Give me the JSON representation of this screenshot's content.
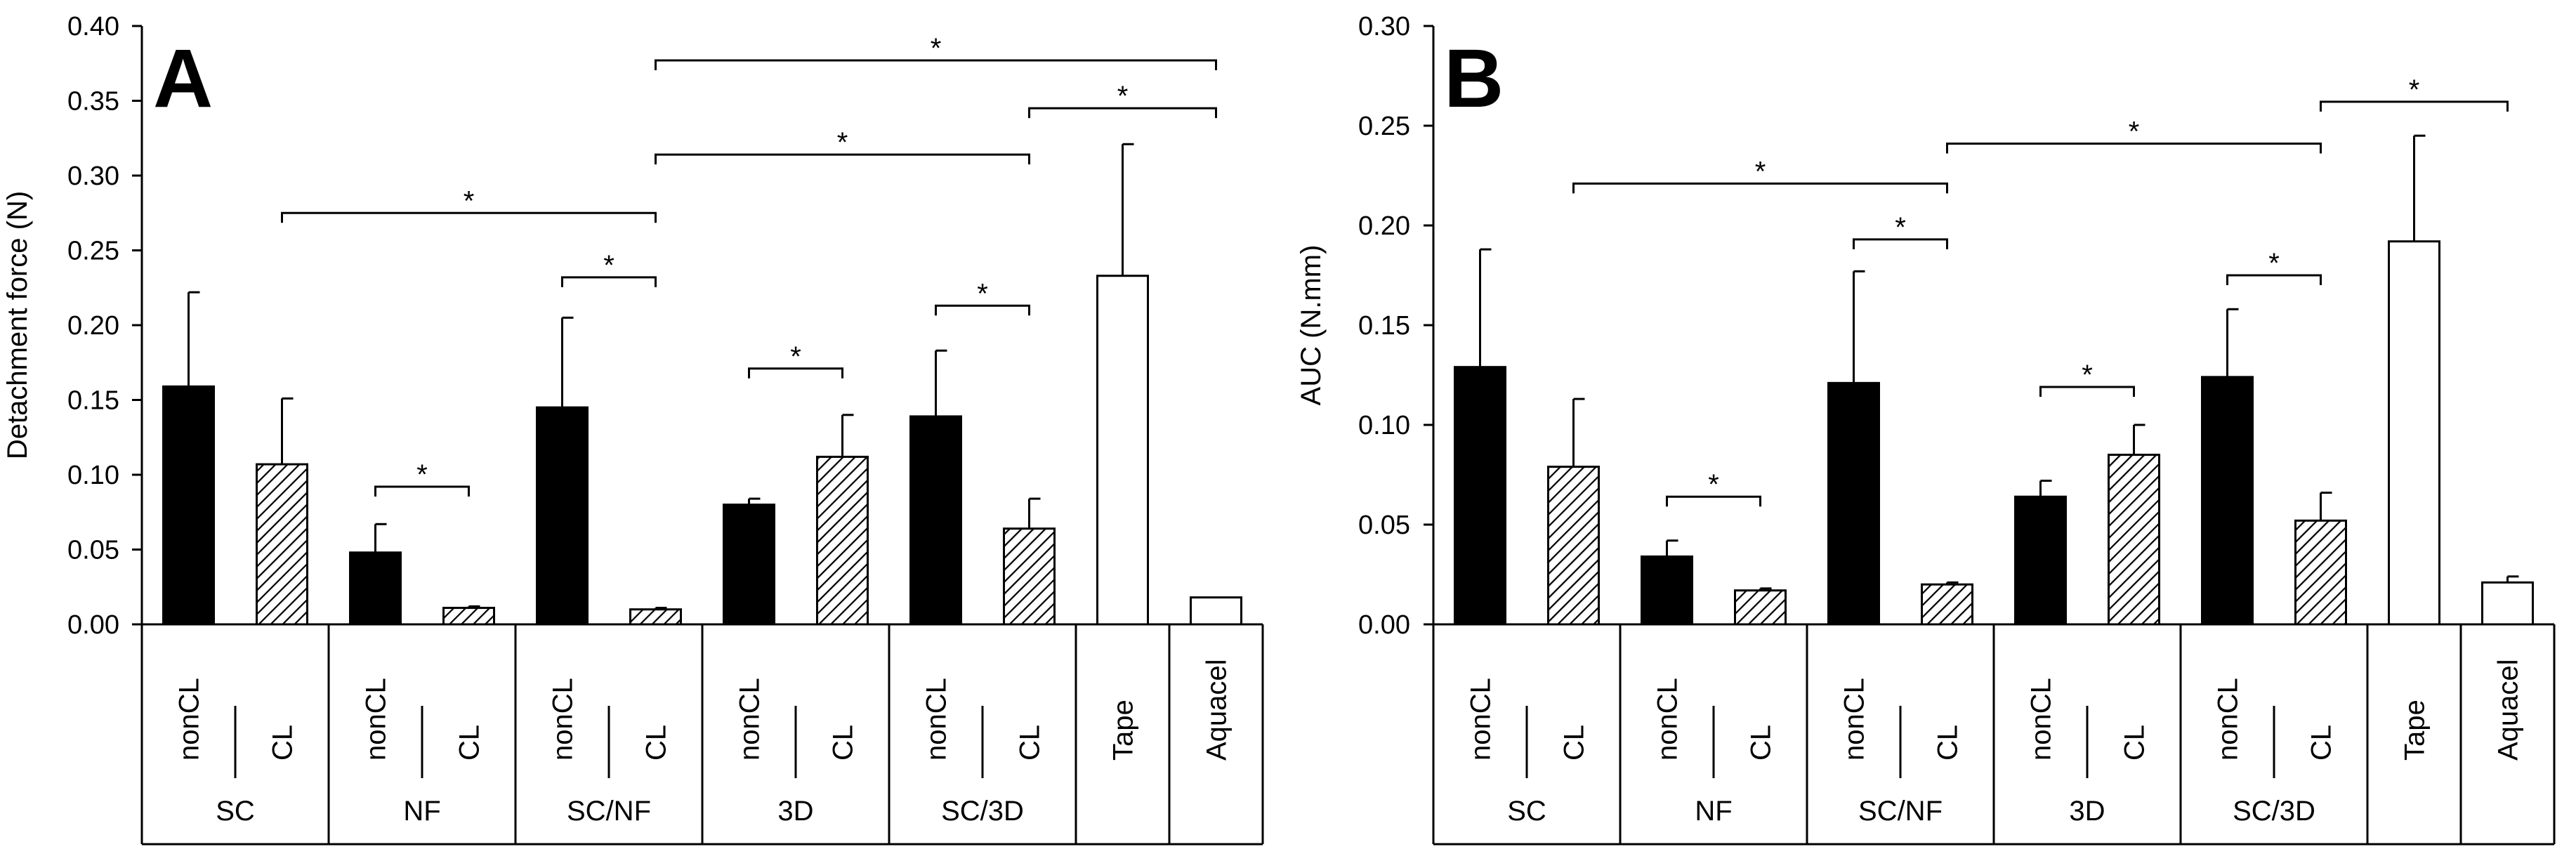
{
  "chart_data": [
    {
      "type": "bar",
      "panel_letter": "A",
      "ylabel": "Detachment force (N)",
      "ylim": [
        0,
        0.4
      ],
      "yticks": [
        "0.00",
        "0.05",
        "0.10",
        "0.15",
        "0.20",
        "0.25",
        "0.30",
        "0.35",
        "0.40"
      ],
      "grid": false,
      "bars": [
        {
          "label": "nonCL",
          "group": "SC",
          "style": "solid",
          "value": 0.159,
          "error": 0.063
        },
        {
          "label": "CL",
          "group": "SC",
          "style": "hatch",
          "value": 0.107,
          "error": 0.044
        },
        {
          "label": "nonCL",
          "group": "NF",
          "style": "solid",
          "value": 0.048,
          "error": 0.019
        },
        {
          "label": "CL",
          "group": "NF",
          "style": "hatch",
          "value": 0.011,
          "error": 0.001
        },
        {
          "label": "nonCL",
          "group": "SC/NF",
          "style": "solid",
          "value": 0.145,
          "error": 0.06
        },
        {
          "label": "CL",
          "group": "SC/NF",
          "style": "hatch",
          "value": 0.01,
          "error": 0.001
        },
        {
          "label": "nonCL",
          "group": "3D",
          "style": "solid",
          "value": 0.08,
          "error": 0.004
        },
        {
          "label": "CL",
          "group": "3D",
          "style": "hatch",
          "value": 0.112,
          "error": 0.028
        },
        {
          "label": "nonCL",
          "group": "SC/3D",
          "style": "solid",
          "value": 0.139,
          "error": 0.044
        },
        {
          "label": "CL",
          "group": "SC/3D",
          "style": "hatch",
          "value": 0.064,
          "error": 0.02
        },
        {
          "label": "Tape",
          "group": "",
          "style": "open",
          "value": 0.233,
          "error": 0.088
        },
        {
          "label": "Aquacel",
          "group": "",
          "style": "open",
          "value": 0.018,
          "error": 0.0
        }
      ],
      "groups": [
        {
          "name": "SC",
          "from": 0,
          "to": 1
        },
        {
          "name": "NF",
          "from": 2,
          "to": 3
        },
        {
          "name": "SC/NF",
          "from": 4,
          "to": 5
        },
        {
          "name": "3D",
          "from": 6,
          "to": 7
        },
        {
          "name": "SC/3D",
          "from": 8,
          "to": 9
        }
      ],
      "brackets": [
        {
          "from": 2,
          "to": 3,
          "level": 0.092,
          "mark": "*"
        },
        {
          "from": 4,
          "to": 5,
          "level": 0.232,
          "mark": "*"
        },
        {
          "from": 6,
          "to": 7,
          "level": 0.171,
          "mark": "*"
        },
        {
          "from": 8,
          "to": 9,
          "level": 0.213,
          "mark": "*"
        },
        {
          "from": 1,
          "to": 5,
          "level": 0.275,
          "mark": "*"
        },
        {
          "from": 5,
          "to": 9,
          "level": 0.314,
          "mark": "*"
        },
        {
          "from": 9,
          "to": 11,
          "level": 0.345,
          "mark": "*"
        },
        {
          "from": 5,
          "to": 11,
          "level": 0.377,
          "mark": "*"
        }
      ]
    },
    {
      "type": "bar",
      "panel_letter": "B",
      "ylabel": "AUC (N.mm)",
      "ylim": [
        0,
        0.3
      ],
      "yticks": [
        "0.00",
        "0.05",
        "0.10",
        "0.15",
        "0.20",
        "0.25",
        "0.30"
      ],
      "grid": false,
      "bars": [
        {
          "label": "nonCL",
          "group": "SC",
          "style": "solid",
          "value": 0.129,
          "error": 0.059
        },
        {
          "label": "CL",
          "group": "SC",
          "style": "hatch",
          "value": 0.079,
          "error": 0.034
        },
        {
          "label": "nonCL",
          "group": "NF",
          "style": "solid",
          "value": 0.034,
          "error": 0.008
        },
        {
          "label": "CL",
          "group": "NF",
          "style": "hatch",
          "value": 0.017,
          "error": 0.001
        },
        {
          "label": "nonCL",
          "group": "SC/NF",
          "style": "solid",
          "value": 0.121,
          "error": 0.056
        },
        {
          "label": "CL",
          "group": "SC/NF",
          "style": "hatch",
          "value": 0.02,
          "error": 0.001
        },
        {
          "label": "nonCL",
          "group": "3D",
          "style": "solid",
          "value": 0.064,
          "error": 0.008
        },
        {
          "label": "CL",
          "group": "3D",
          "style": "hatch",
          "value": 0.085,
          "error": 0.015
        },
        {
          "label": "nonCL",
          "group": "SC/3D",
          "style": "solid",
          "value": 0.124,
          "error": 0.034
        },
        {
          "label": "CL",
          "group": "SC/3D",
          "style": "hatch",
          "value": 0.052,
          "error": 0.014
        },
        {
          "label": "Tape",
          "group": "",
          "style": "open",
          "value": 0.192,
          "error": 0.053
        },
        {
          "label": "Aquacel",
          "group": "",
          "style": "open",
          "value": 0.021,
          "error": 0.003
        }
      ],
      "groups": [
        {
          "name": "SC",
          "from": 0,
          "to": 1
        },
        {
          "name": "NF",
          "from": 2,
          "to": 3
        },
        {
          "name": "SC/NF",
          "from": 4,
          "to": 5
        },
        {
          "name": "3D",
          "from": 6,
          "to": 7
        },
        {
          "name": "SC/3D",
          "from": 8,
          "to": 9
        }
      ],
      "brackets": [
        {
          "from": 2,
          "to": 3,
          "level": 0.064,
          "mark": "*"
        },
        {
          "from": 4,
          "to": 5,
          "level": 0.193,
          "mark": "*"
        },
        {
          "from": 6,
          "to": 7,
          "level": 0.119,
          "mark": "*"
        },
        {
          "from": 8,
          "to": 9,
          "level": 0.175,
          "mark": "*"
        },
        {
          "from": 1,
          "to": 5,
          "level": 0.221,
          "mark": "*"
        },
        {
          "from": 5,
          "to": 9,
          "level": 0.241,
          "mark": "*"
        },
        {
          "from": 9,
          "to": 11,
          "level": 0.262,
          "mark": "*"
        }
      ]
    }
  ]
}
